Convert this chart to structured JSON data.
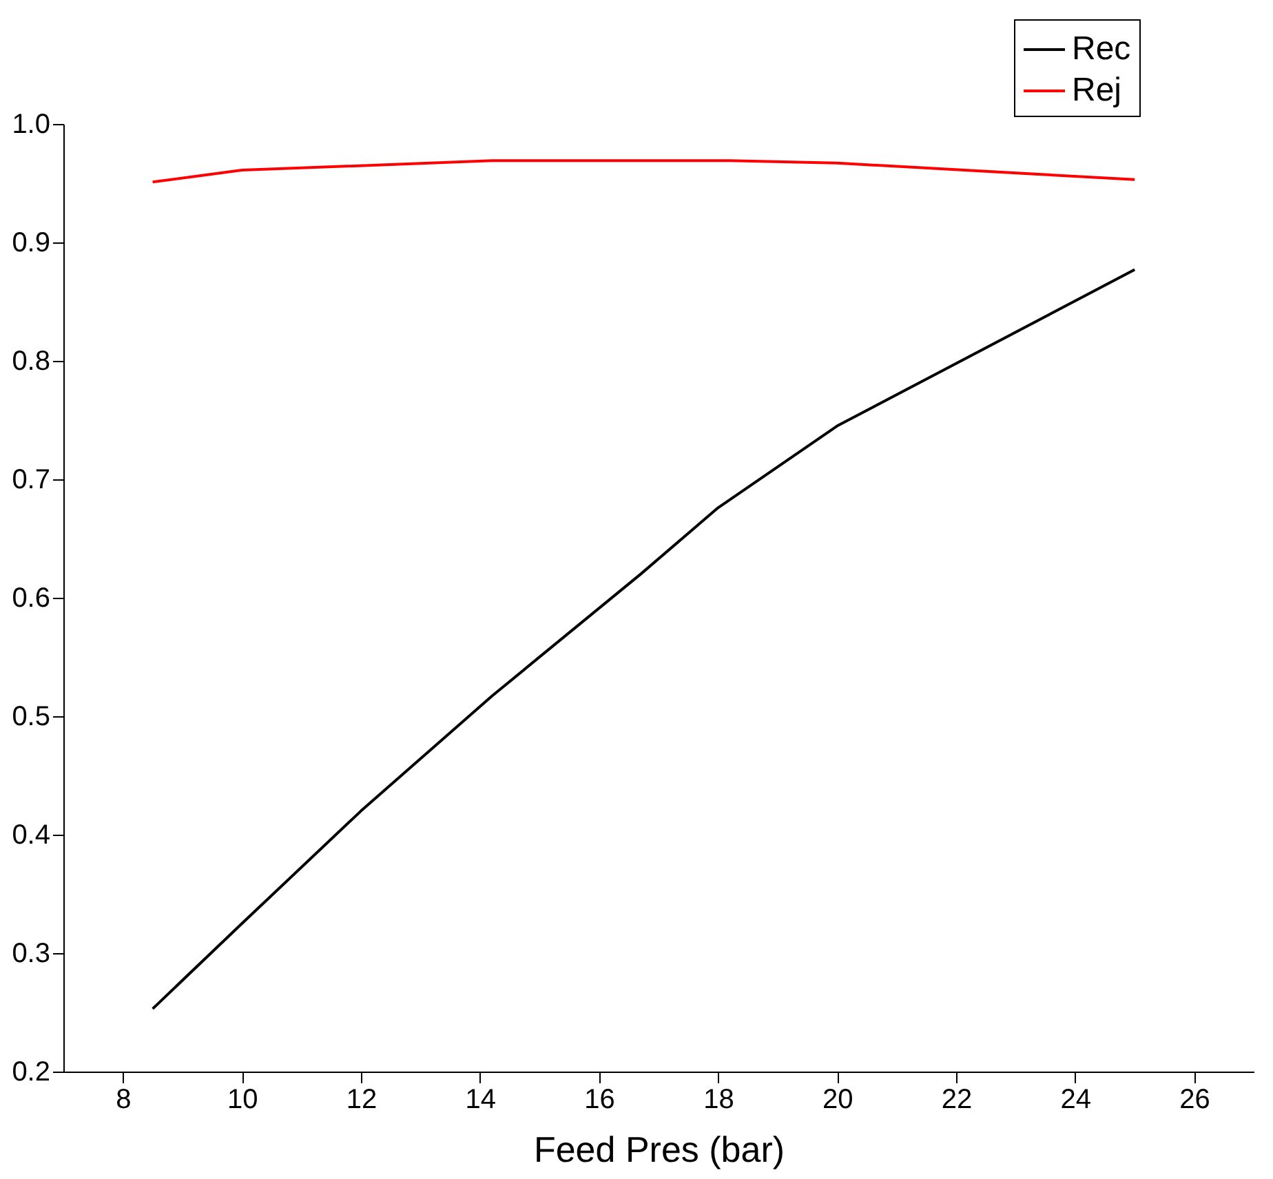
{
  "chart_data": {
    "type": "line",
    "xlabel": "Feed Pres (bar)",
    "xlim": [
      7,
      27
    ],
    "xticks": [
      8,
      10,
      12,
      14,
      16,
      18,
      20,
      22,
      24,
      26
    ],
    "ylim": [
      0.2,
      1.0
    ],
    "yticks": [
      0.2,
      0.3,
      0.4,
      0.5,
      0.6,
      0.7,
      0.8,
      0.9,
      {
        "value": 1.0,
        "label": "1.0"
      }
    ],
    "grid": false,
    "legend": "top right",
    "marker": "none",
    "line_style": "solid",
    "series": [
      {
        "name": "Rec",
        "color": "#000000",
        "x": [
          8.5,
          10,
          12,
          14.2,
          16.7,
          18,
          20,
          25
        ],
        "values": [
          0.253,
          0.325,
          0.42,
          0.517,
          0.62,
          0.676,
          0.745,
          0.877
        ]
      },
      {
        "name": "Rej",
        "color": "#ff0000",
        "x": [
          8.5,
          10,
          14.2,
          18.2,
          20,
          25
        ],
        "values": [
          0.951,
          0.961,
          0.969,
          0.969,
          0.967,
          0.953
        ]
      }
    ]
  }
}
